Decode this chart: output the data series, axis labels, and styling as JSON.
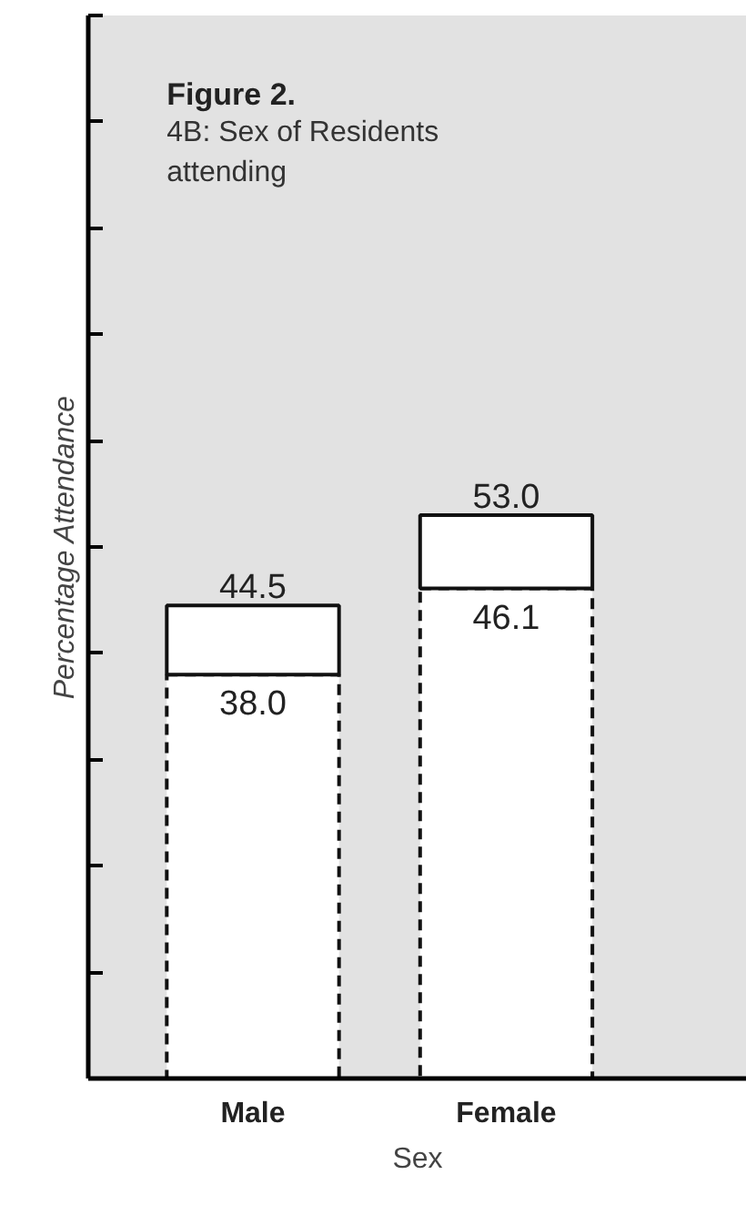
{
  "chart_data": {
    "type": "bar",
    "title": "Figure 2.",
    "subtitle": "4B: Sex of Residents attending",
    "xlabel": "Sex",
    "ylabel": "Percentage Attendance",
    "categories": [
      "Male",
      "Female"
    ],
    "series": [
      {
        "color": "#ffffff",
        "line_style": "dashed",
        "values": [
          38.0,
          46.1
        ],
        "value_labels": [
          "38.0",
          "46.1"
        ]
      },
      {
        "color": "#ffffff",
        "line_style": "solid",
        "values": [
          6.5,
          6.9
        ]
      }
    ],
    "stacked": true,
    "totals": [
      "44.5",
      "53.0"
    ],
    "ylim": [
      0,
      100
    ],
    "yticks": [
      {
        "value": 10,
        "label": null
      },
      {
        "value": 20,
        "label": null
      },
      {
        "value": 30,
        "label": null
      },
      {
        "value": 40,
        "label": null
      },
      {
        "value": 50,
        "label": null
      },
      {
        "value": 60,
        "label": null
      },
      {
        "value": 70,
        "label": null
      },
      {
        "value": 80,
        "label": null
      },
      {
        "value": 90,
        "label": null
      },
      {
        "value": 100,
        "label": null
      }
    ],
    "tick_labels": "x"
  }
}
